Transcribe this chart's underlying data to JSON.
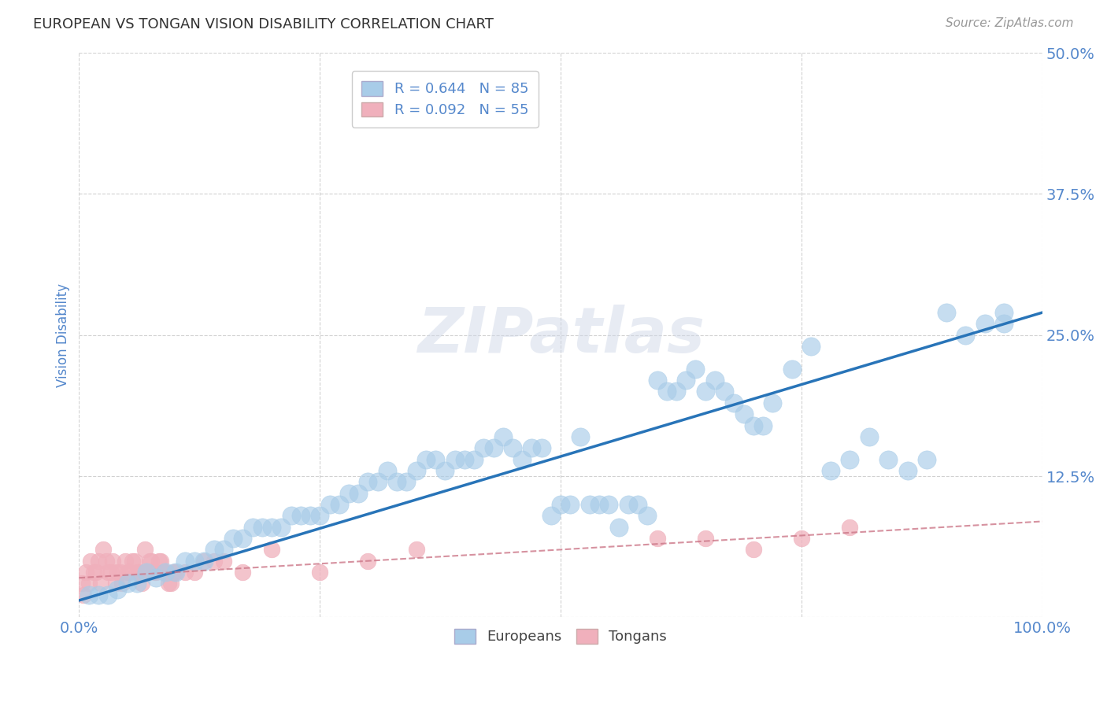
{
  "title": "EUROPEAN VS TONGAN VISION DISABILITY CORRELATION CHART",
  "source": "Source: ZipAtlas.com",
  "ylabel": "Vision Disability",
  "xlim": [
    0,
    100
  ],
  "ylim": [
    0,
    50
  ],
  "yticks": [
    0,
    12.5,
    25.0,
    37.5,
    50.0
  ],
  "xticks": [
    0,
    25,
    50,
    75,
    100
  ],
  "legend_european": "R = 0.644   N = 85",
  "legend_tongan": "R = 0.092   N = 55",
  "european_color": "#a8cce8",
  "tongan_color": "#f0b0bc",
  "line_european_color": "#2874b8",
  "line_tongan_color": "#cc7788",
  "title_color": "#333333",
  "axis_label_color": "#5588cc",
  "tick_label_color": "#5588cc",
  "source_color": "#999999",
  "watermark": "ZIPatlas",
  "eu_x": [
    2,
    4,
    6,
    8,
    10,
    12,
    14,
    16,
    17,
    18,
    20,
    22,
    24,
    26,
    28,
    30,
    32,
    34,
    36,
    38,
    40,
    42,
    44,
    46,
    48,
    50,
    52,
    54,
    56,
    58,
    60,
    62,
    64,
    66,
    68,
    70,
    72,
    74,
    76,
    78,
    80,
    82,
    84,
    86,
    88,
    90,
    92,
    94,
    96,
    1,
    3,
    5,
    7,
    9,
    11,
    13,
    15,
    19,
    21,
    23,
    25,
    27,
    29,
    31,
    33,
    35,
    37,
    39,
    41,
    43,
    45,
    47,
    49,
    51,
    53,
    55,
    57,
    59,
    61,
    63,
    65,
    67,
    69,
    71,
    96
  ],
  "eu_y": [
    2,
    2.5,
    3,
    3.5,
    4,
    5,
    6,
    7,
    7,
    8,
    8,
    9,
    9,
    10,
    11,
    12,
    13,
    12,
    14,
    13,
    14,
    15,
    16,
    14,
    15,
    10,
    16,
    10,
    8,
    10,
    21,
    20,
    22,
    21,
    19,
    17,
    19,
    22,
    24,
    13,
    14,
    16,
    14,
    13,
    14,
    27,
    25,
    26,
    27,
    2,
    2,
    3,
    4,
    4,
    5,
    5,
    6,
    8,
    8,
    9,
    9,
    10,
    11,
    12,
    12,
    13,
    14,
    14,
    14,
    15,
    15,
    15,
    9,
    10,
    10,
    10,
    10,
    9,
    20,
    21,
    20,
    20,
    18,
    17,
    26
  ],
  "to_x": [
    0.5,
    1,
    1.5,
    2,
    2.5,
    3,
    3.5,
    4,
    4.5,
    5,
    5.5,
    6,
    6.5,
    7,
    7.5,
    8,
    8.5,
    9,
    9.5,
    10,
    11,
    12,
    13,
    14,
    15,
    17,
    20,
    25,
    30,
    35,
    0.3,
    0.7,
    1.2,
    1.8,
    2.3,
    2.8,
    3.3,
    3.8,
    4.3,
    4.8,
    5.3,
    5.8,
    6.3,
    6.8,
    7.3,
    7.8,
    8.3,
    8.8,
    9.3,
    9.8,
    60,
    65,
    70,
    75,
    80
  ],
  "to_y": [
    2,
    3,
    4,
    5,
    6,
    4,
    5,
    4,
    3,
    4,
    5,
    4,
    3,
    4,
    5,
    4,
    5,
    4,
    3,
    4,
    4,
    4,
    5,
    5,
    5,
    4,
    6,
    4,
    5,
    6,
    3,
    4,
    5,
    4,
    3,
    5,
    4,
    3,
    4,
    5,
    4,
    5,
    4,
    6,
    5,
    4,
    5,
    4,
    3,
    4,
    7,
    7,
    6,
    7,
    8
  ],
  "eu_line_x0": 0,
  "eu_line_y0": 1.5,
  "eu_line_x1": 100,
  "eu_line_y1": 27,
  "to_line_x0": 0,
  "to_line_y0": 3.5,
  "to_line_x1": 100,
  "to_line_y1": 8.5
}
